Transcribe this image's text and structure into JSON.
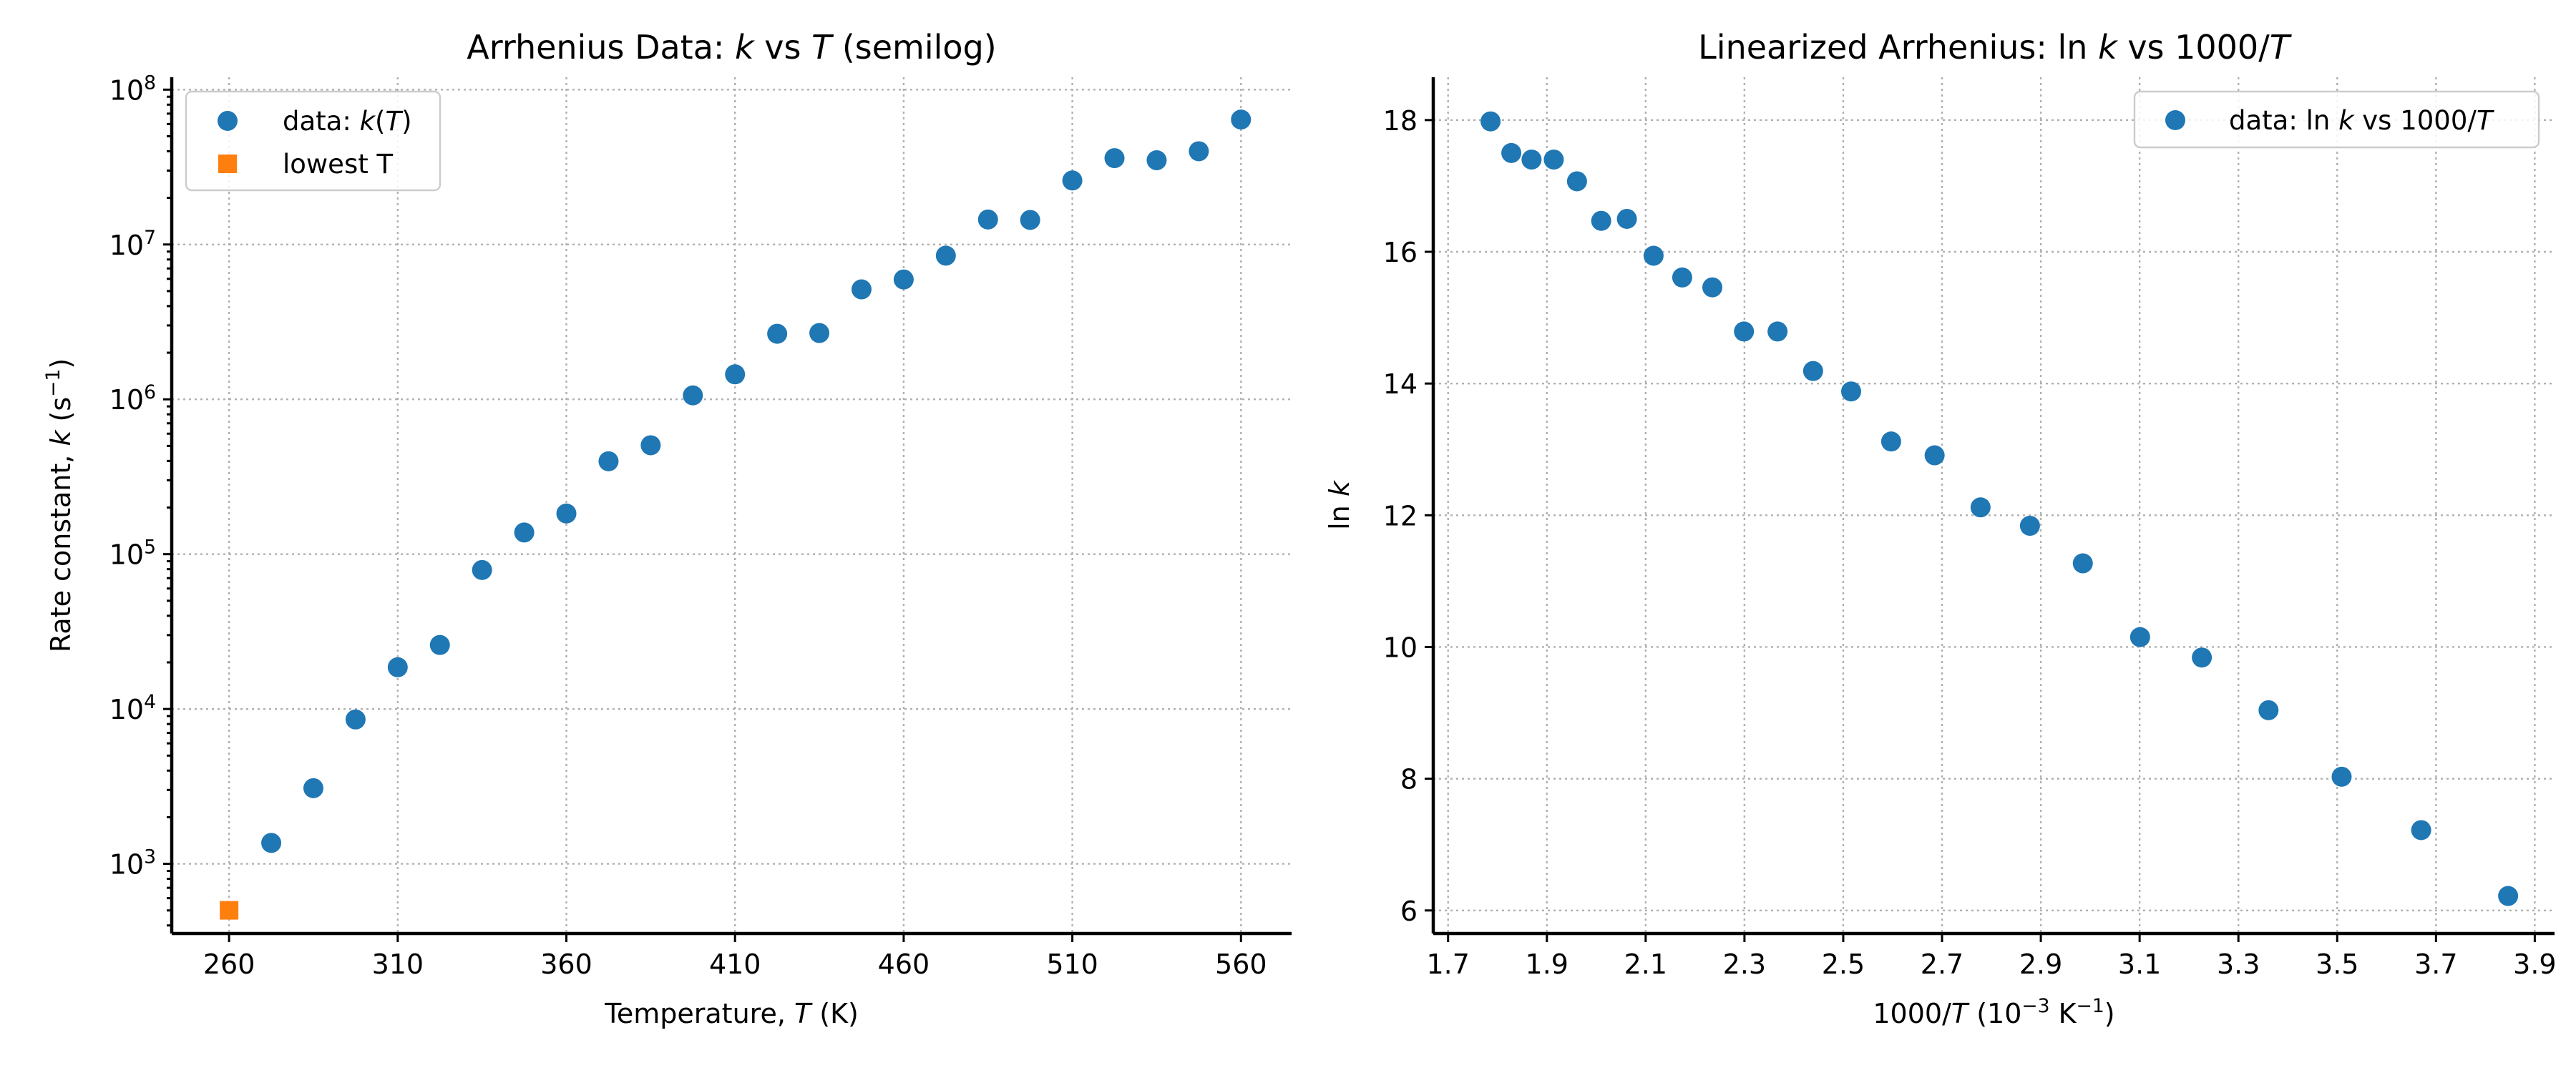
{
  "chart_data": [
    {
      "type": "scatter",
      "title": "Arrhenius Data: k vs T (semilog)",
      "title_parts": [
        "Arrhenius Data: ",
        "k",
        " vs ",
        "T",
        " (semilog)"
      ],
      "xlabel_parts": [
        "Temperature, ",
        "T",
        " (K)"
      ],
      "ylabel_parts": [
        "Rate constant, ",
        "k",
        " (s",
        "−1",
        ")"
      ],
      "x_ticks": [
        "260",
        "310",
        "360",
        "410",
        "460",
        "510",
        "560"
      ],
      "y_ticks": [
        {
          "base": "10",
          "exp": "3"
        },
        {
          "base": "10",
          "exp": "4"
        },
        {
          "base": "10",
          "exp": "5"
        },
        {
          "base": "10",
          "exp": "6"
        },
        {
          "base": "10",
          "exp": "7"
        },
        {
          "base": "10",
          "exp": "8"
        }
      ],
      "y_scale": "log",
      "xlim": [
        243,
        575
      ],
      "ylim_log10": [
        2.55,
        8.08
      ],
      "grid": true,
      "legend_position": "top-left",
      "series": [
        {
          "name_parts": [
            "data: ",
            "k",
            "(",
            "T",
            ")"
          ],
          "color": "#1f77b4",
          "marker": "circle",
          "x": [
            272.5,
            285,
            297.5,
            310,
            322.5,
            335,
            347.5,
            360,
            372.5,
            385,
            397.5,
            410,
            422.5,
            435,
            447.5,
            460,
            472.5,
            485,
            497.5,
            510,
            522.5,
            535,
            547.5,
            560
          ],
          "y": [
            1365,
            3080,
            8560,
            18600,
            25900,
            79000,
            138000,
            183000,
            398000,
            505000,
            1060000,
            1450000,
            2650000,
            2680000,
            5130000,
            5940000,
            8470000,
            14500000,
            14400000,
            25900000,
            36100000,
            35000000,
            40000000,
            64100000
          ]
        },
        {
          "name": "lowest T",
          "color": "#ff7f0e",
          "marker": "square",
          "x": [
            260
          ],
          "y": [
            501
          ]
        }
      ]
    },
    {
      "type": "scatter",
      "title": "Linearized Arrhenius: ln k vs 1000/T",
      "title_parts": [
        "Linearized Arrhenius: ",
        "ln",
        " ",
        "k",
        " vs 1000/",
        "T"
      ],
      "xlabel_parts": [
        "1000/",
        "T",
        " (10",
        "−3",
        " K",
        "−1",
        ")"
      ],
      "ylabel_parts": [
        "ln",
        " ",
        "k"
      ],
      "x_ticks": [
        "1.7",
        "1.9",
        "2.1",
        "2.3",
        "2.5",
        "2.7",
        "2.9",
        "3.1",
        "3.3",
        "3.5",
        "3.7",
        "3.9"
      ],
      "y_ticks": [
        "6",
        "8",
        "10",
        "12",
        "14",
        "16",
        "18"
      ],
      "xlim": [
        1.67,
        3.94
      ],
      "ylim": [
        5.65,
        18.65
      ],
      "grid": true,
      "legend_position": "top-right",
      "series": [
        {
          "name_parts": [
            "data: ",
            "ln",
            " ",
            "k",
            " vs 1000/",
            "T"
          ],
          "color": "#1f77b4",
          "marker": "circle",
          "x": [
            1.786,
            1.828,
            1.869,
            1.914,
            1.961,
            2.01,
            2.062,
            2.116,
            2.174,
            2.235,
            2.299,
            2.367,
            2.439,
            2.516,
            2.597,
            2.685,
            2.778,
            2.878,
            2.985,
            3.101,
            3.226,
            3.361,
            3.509,
            3.67,
            3.846
          ],
          "y": [
            17.98,
            17.5,
            17.4,
            17.4,
            17.07,
            16.47,
            16.5,
            15.94,
            15.61,
            15.46,
            14.79,
            14.79,
            14.19,
            13.88,
            13.12,
            12.91,
            12.12,
            11.84,
            11.27,
            10.15,
            9.84,
            9.04,
            8.03,
            7.22,
            6.22
          ]
        }
      ]
    }
  ]
}
